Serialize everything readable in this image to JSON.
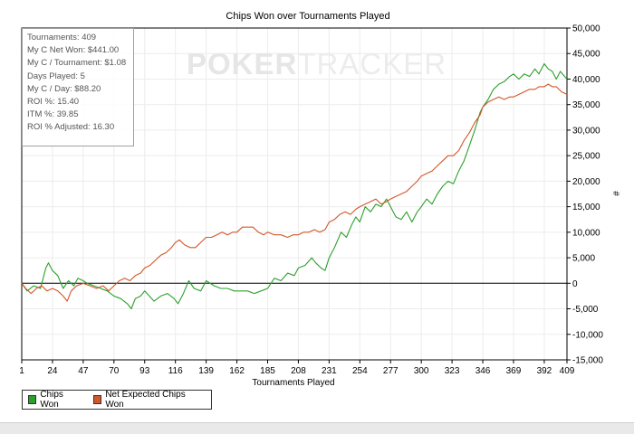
{
  "chart_data": {
    "type": "line",
    "title": "Chips Won over Tournaments Played",
    "xlabel": "Tournaments Played",
    "ylabel": "#",
    "xlim": [
      1,
      409
    ],
    "ylim": [
      -15000,
      50000
    ],
    "x_ticks": [
      1,
      24,
      47,
      70,
      93,
      116,
      139,
      162,
      185,
      208,
      231,
      254,
      277,
      300,
      323,
      346,
      369,
      392,
      409
    ],
    "y_ticks": [
      -15000,
      -10000,
      -5000,
      0,
      5000,
      10000,
      15000,
      20000,
      25000,
      30000,
      35000,
      40000,
      45000,
      50000
    ],
    "y_tick_labels": [
      "-15,000",
      "-10,000",
      "-5,000",
      "0",
      "5,000",
      "10,000",
      "15,000",
      "20,000",
      "25,000",
      "30,000",
      "35,000",
      "40,000",
      "45,000",
      "50,000"
    ],
    "grid": true,
    "legend": "bottom-left",
    "series": [
      {
        "name": "Chips Won",
        "color": "#2ca02c",
        "points": [
          [
            1,
            0
          ],
          [
            5,
            -1500
          ],
          [
            10,
            -500
          ],
          [
            15,
            -1000
          ],
          [
            19,
            3000
          ],
          [
            21,
            4000
          ],
          [
            24,
            2500
          ],
          [
            28,
            1500
          ],
          [
            32,
            -1000
          ],
          [
            36,
            500
          ],
          [
            40,
            -500
          ],
          [
            43,
            1000
          ],
          [
            47,
            500
          ],
          [
            50,
            0
          ],
          [
            55,
            -500
          ],
          [
            60,
            -1000
          ],
          [
            65,
            -1500
          ],
          [
            70,
            -2500
          ],
          [
            75,
            -3000
          ],
          [
            80,
            -4000
          ],
          [
            83,
            -5000
          ],
          [
            86,
            -3000
          ],
          [
            90,
            -2500
          ],
          [
            93,
            -1500
          ],
          [
            100,
            -3500
          ],
          [
            105,
            -2500
          ],
          [
            110,
            -2000
          ],
          [
            115,
            -3000
          ],
          [
            118,
            -4000
          ],
          [
            122,
            -2000
          ],
          [
            126,
            500
          ],
          [
            130,
            -1000
          ],
          [
            135,
            -1500
          ],
          [
            139,
            500
          ],
          [
            145,
            -500
          ],
          [
            150,
            -1000
          ],
          [
            155,
            -1000
          ],
          [
            160,
            -1500
          ],
          [
            165,
            -1500
          ],
          [
            170,
            -1500
          ],
          [
            175,
            -2000
          ],
          [
            180,
            -1500
          ],
          [
            185,
            -1000
          ],
          [
            190,
            1000
          ],
          [
            195,
            500
          ],
          [
            200,
            2000
          ],
          [
            205,
            1500
          ],
          [
            208,
            3000
          ],
          [
            213,
            3500
          ],
          [
            218,
            5000
          ],
          [
            221,
            4000
          ],
          [
            225,
            3000
          ],
          [
            228,
            2500
          ],
          [
            231,
            5000
          ],
          [
            235,
            7000
          ],
          [
            240,
            10000
          ],
          [
            244,
            9000
          ],
          [
            248,
            11500
          ],
          [
            251,
            13000
          ],
          [
            254,
            12000
          ],
          [
            258,
            15000
          ],
          [
            262,
            14000
          ],
          [
            266,
            15500
          ],
          [
            270,
            15000
          ],
          [
            274,
            16500
          ],
          [
            277,
            15000
          ],
          [
            281,
            13000
          ],
          [
            285,
            12500
          ],
          [
            289,
            14000
          ],
          [
            293,
            12000
          ],
          [
            297,
            14000
          ],
          [
            300,
            15000
          ],
          [
            304,
            16500
          ],
          [
            308,
            15500
          ],
          [
            312,
            17500
          ],
          [
            316,
            19000
          ],
          [
            320,
            20000
          ],
          [
            324,
            19500
          ],
          [
            328,
            22000
          ],
          [
            332,
            24000
          ],
          [
            336,
            27000
          ],
          [
            340,
            30000
          ],
          [
            344,
            33500
          ],
          [
            346,
            34500
          ],
          [
            350,
            36000
          ],
          [
            354,
            38000
          ],
          [
            358,
            39000
          ],
          [
            362,
            39500
          ],
          [
            366,
            40500
          ],
          [
            369,
            41000
          ],
          [
            373,
            40000
          ],
          [
            377,
            41000
          ],
          [
            381,
            40500
          ],
          [
            385,
            42000
          ],
          [
            388,
            41000
          ],
          [
            392,
            43000
          ],
          [
            395,
            42000
          ],
          [
            398,
            41500
          ],
          [
            401,
            40000
          ],
          [
            404,
            41500
          ],
          [
            409,
            40000
          ]
        ]
      },
      {
        "name": "Net Expected Chips Won",
        "color": "#d2572a",
        "points": [
          [
            1,
            0
          ],
          [
            4,
            -1000
          ],
          [
            8,
            -2000
          ],
          [
            12,
            -1000
          ],
          [
            16,
            -500
          ],
          [
            20,
            -1500
          ],
          [
            24,
            -1000
          ],
          [
            28,
            -1500
          ],
          [
            32,
            -2500
          ],
          [
            35,
            -3500
          ],
          [
            38,
            -1500
          ],
          [
            42,
            -500
          ],
          [
            47,
            0
          ],
          [
            52,
            -500
          ],
          [
            57,
            -1000
          ],
          [
            62,
            -500
          ],
          [
            66,
            -1500
          ],
          [
            70,
            -500
          ],
          [
            74,
            500
          ],
          [
            78,
            1000
          ],
          [
            82,
            500
          ],
          [
            86,
            1500
          ],
          [
            90,
            2000
          ],
          [
            93,
            3000
          ],
          [
            97,
            3500
          ],
          [
            101,
            4500
          ],
          [
            105,
            5500
          ],
          [
            109,
            6000
          ],
          [
            113,
            7000
          ],
          [
            116,
            8000
          ],
          [
            119,
            8500
          ],
          [
            123,
            7500
          ],
          [
            127,
            7000
          ],
          [
            131,
            7000
          ],
          [
            135,
            8000
          ],
          [
            139,
            9000
          ],
          [
            143,
            9000
          ],
          [
            147,
            9500
          ],
          [
            151,
            10000
          ],
          [
            155,
            9500
          ],
          [
            159,
            10000
          ],
          [
            162,
            10000
          ],
          [
            166,
            11000
          ],
          [
            170,
            11000
          ],
          [
            174,
            11000
          ],
          [
            178,
            10000
          ],
          [
            182,
            9500
          ],
          [
            185,
            10000
          ],
          [
            190,
            9500
          ],
          [
            195,
            9500
          ],
          [
            200,
            9000
          ],
          [
            204,
            9500
          ],
          [
            208,
            9500
          ],
          [
            212,
            10000
          ],
          [
            216,
            10000
          ],
          [
            220,
            10500
          ],
          [
            224,
            10000
          ],
          [
            228,
            10500
          ],
          [
            231,
            12000
          ],
          [
            235,
            12500
          ],
          [
            239,
            13500
          ],
          [
            243,
            14000
          ],
          [
            247,
            13500
          ],
          [
            251,
            14500
          ],
          [
            254,
            15000
          ],
          [
            258,
            15500
          ],
          [
            262,
            16000
          ],
          [
            266,
            16500
          ],
          [
            270,
            15500
          ],
          [
            274,
            16000
          ],
          [
            277,
            16500
          ],
          [
            281,
            17000
          ],
          [
            285,
            17500
          ],
          [
            289,
            18000
          ],
          [
            293,
            19000
          ],
          [
            297,
            20000
          ],
          [
            300,
            21000
          ],
          [
            304,
            21500
          ],
          [
            308,
            22000
          ],
          [
            312,
            23000
          ],
          [
            316,
            24000
          ],
          [
            320,
            25000
          ],
          [
            324,
            25000
          ],
          [
            328,
            26000
          ],
          [
            332,
            28000
          ],
          [
            336,
            29500
          ],
          [
            340,
            31500
          ],
          [
            344,
            33000
          ],
          [
            346,
            34500
          ],
          [
            350,
            35500
          ],
          [
            354,
            36000
          ],
          [
            358,
            36500
          ],
          [
            362,
            36000
          ],
          [
            366,
            36500
          ],
          [
            369,
            36500
          ],
          [
            373,
            37000
          ],
          [
            377,
            37500
          ],
          [
            381,
            38000
          ],
          [
            385,
            38000
          ],
          [
            388,
            38500
          ],
          [
            392,
            38500
          ],
          [
            395,
            39000
          ],
          [
            398,
            38500
          ],
          [
            401,
            38500
          ],
          [
            405,
            37500
          ],
          [
            409,
            37000
          ]
        ]
      }
    ]
  },
  "stats": [
    "Tournaments: 409",
    "My C Net Won: $441.00",
    "My C / Tournament: $1.08",
    "Days Played: 5",
    "My C / Day: $88.20",
    "ROI %: 15.40",
    "ITM %: 39.85",
    "ROI % Adjusted: 16.30"
  ],
  "watermark": {
    "part1": "POKER",
    "part2": "TRACKER"
  },
  "legend_items": [
    {
      "label": "Chips Won",
      "color": "#2ca02c"
    },
    {
      "label": "Net Expected Chips Won",
      "color": "#d2572a"
    }
  ]
}
